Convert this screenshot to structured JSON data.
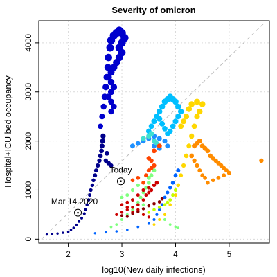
{
  "chart_data": {
    "type": "scatter",
    "title": "Severity of omicron",
    "xlabel": "log10(New daily infections)",
    "ylabel": "Hospital+ICU bed occupancy",
    "xlim": [
      1.45,
      5.75
    ],
    "ylim": [
      -80,
      4450
    ],
    "x_ticks": [
      2,
      3,
      4,
      5
    ],
    "x_tick_labels": [
      "2",
      "3",
      "4",
      "5"
    ],
    "y_ticks": [
      0,
      1000,
      2000,
      3000,
      4000
    ],
    "y_tick_labels": [
      "0",
      "1000",
      "2000",
      "3000",
      "4000"
    ],
    "grid": true,
    "legend": "none",
    "reference_line": {
      "from": [
        1.5,
        0
      ],
      "to": [
        5.65,
        4400
      ],
      "style": "dashed",
      "color": "#bbbbbb"
    },
    "annotations": [
      {
        "label": "Today",
        "x": 2.98,
        "y": 1180,
        "marker": "circled-dot"
      },
      {
        "label": "Mar 14 2020",
        "x": 2.18,
        "y": 540,
        "marker": "circled-dot"
      }
    ],
    "series": [
      {
        "color": "#00008b",
        "values": [
          [
            1.6,
            95
          ],
          [
            1.7,
            105
          ],
          [
            1.8,
            115
          ],
          [
            1.9,
            130
          ],
          [
            2.0,
            150
          ],
          [
            2.05,
            190
          ],
          [
            2.1,
            230
          ],
          [
            2.15,
            290
          ],
          [
            2.2,
            360
          ],
          [
            2.25,
            430
          ],
          [
            2.3,
            520
          ],
          [
            2.32,
            600
          ],
          [
            2.35,
            700
          ],
          [
            2.38,
            800
          ],
          [
            2.4,
            900
          ],
          [
            2.42,
            1000
          ],
          [
            2.45,
            1100
          ],
          [
            2.47,
            1200
          ],
          [
            2.5,
            1300
          ],
          [
            2.52,
            1400
          ],
          [
            2.55,
            1500
          ],
          [
            2.58,
            1600
          ],
          [
            2.6,
            1700
          ],
          [
            2.62,
            1800
          ],
          [
            2.63,
            1900
          ],
          [
            2.64,
            2000
          ],
          [
            2.65,
            2100
          ],
          [
            2.72,
            1750
          ],
          [
            2.7,
            1600
          ],
          [
            2.75,
            1550
          ],
          [
            2.8,
            1500
          ]
        ]
      },
      {
        "color": "#0000cd",
        "values": [
          [
            2.6,
            2300
          ],
          [
            2.63,
            2500
          ],
          [
            2.66,
            2700
          ],
          [
            2.68,
            2900
          ],
          [
            2.7,
            3100
          ],
          [
            2.72,
            3300
          ],
          [
            2.74,
            3500
          ],
          [
            2.75,
            3700
          ],
          [
            2.78,
            3900
          ],
          [
            2.8,
            4050
          ],
          [
            2.85,
            4150
          ],
          [
            2.9,
            4200
          ],
          [
            2.95,
            4250
          ],
          [
            3.0,
            4200
          ],
          [
            3.05,
            4100
          ],
          [
            3.0,
            4000
          ],
          [
            2.95,
            3900
          ],
          [
            3.0,
            3800
          ],
          [
            2.95,
            3700
          ],
          [
            2.9,
            3600
          ],
          [
            2.85,
            3500
          ],
          [
            2.8,
            3400
          ],
          [
            2.75,
            3300
          ],
          [
            2.8,
            3200
          ],
          [
            2.85,
            3100
          ],
          [
            2.8,
            3000
          ],
          [
            2.75,
            2900
          ],
          [
            2.8,
            2800
          ],
          [
            2.85,
            2700
          ],
          [
            2.8,
            2600
          ]
        ]
      },
      {
        "color": "#0064ff",
        "values": [
          [
            2.5,
            120
          ],
          [
            2.7,
            140
          ],
          [
            2.9,
            160
          ],
          [
            3.1,
            190
          ],
          [
            3.3,
            250
          ],
          [
            3.5,
            320
          ],
          [
            3.6,
            400
          ],
          [
            3.65,
            500
          ],
          [
            3.7,
            600
          ],
          [
            3.75,
            700
          ],
          [
            3.8,
            850
          ],
          [
            3.85,
            950
          ],
          [
            3.9,
            1050
          ],
          [
            3.95,
            1150
          ],
          [
            4.0,
            1300
          ],
          [
            4.05,
            1400
          ]
        ]
      },
      {
        "color": "#1e90ff",
        "values": [
          [
            3.2,
            1900
          ],
          [
            3.3,
            1950
          ],
          [
            3.4,
            2000
          ],
          [
            3.5,
            2050
          ],
          [
            3.6,
            2100
          ],
          [
            3.7,
            2050
          ],
          [
            3.8,
            2000
          ],
          [
            3.85,
            1900
          ],
          [
            3.7,
            1850
          ],
          [
            3.6,
            1900
          ]
        ]
      },
      {
        "color": "#00bfff",
        "values": [
          [
            3.5,
            2200
          ],
          [
            3.55,
            2300
          ],
          [
            3.6,
            2400
          ],
          [
            3.65,
            2500
          ],
          [
            3.7,
            2600
          ],
          [
            3.75,
            2700
          ],
          [
            3.8,
            2800
          ],
          [
            3.85,
            2850
          ],
          [
            3.9,
            2900
          ],
          [
            3.95,
            2850
          ],
          [
            4.0,
            2800
          ],
          [
            4.05,
            2700
          ],
          [
            4.1,
            2600
          ],
          [
            4.05,
            2500
          ],
          [
            4.0,
            2400
          ],
          [
            3.95,
            2300
          ],
          [
            3.9,
            2200
          ],
          [
            3.85,
            2150
          ],
          [
            3.8,
            2250
          ],
          [
            3.75,
            2350
          ],
          [
            3.7,
            2450
          ]
        ]
      },
      {
        "color": "#40e0d0",
        "values": [
          [
            3.4,
            2050
          ],
          [
            3.5,
            2100
          ],
          [
            3.55,
            2150
          ],
          [
            3.6,
            2000
          ],
          [
            3.65,
            1950
          ],
          [
            3.7,
            1900
          ]
        ]
      },
      {
        "color": "#7fff7f",
        "values": [
          [
            2.8,
            250
          ],
          [
            2.9,
            300
          ],
          [
            3.0,
            400
          ],
          [
            3.1,
            500
          ],
          [
            3.2,
            600
          ],
          [
            3.3,
            750
          ],
          [
            3.35,
            850
          ],
          [
            3.4,
            950
          ],
          [
            3.45,
            1050
          ],
          [
            3.5,
            1150
          ],
          [
            3.55,
            1300
          ],
          [
            3.6,
            1400
          ],
          [
            3.5,
            1250
          ],
          [
            3.3,
            1100
          ],
          [
            3.2,
            1000
          ],
          [
            3.1,
            900
          ],
          [
            3.0,
            850
          ],
          [
            3.2,
            800
          ],
          [
            3.4,
            700
          ],
          [
            3.6,
            600
          ],
          [
            3.8,
            400
          ],
          [
            3.9,
            300
          ],
          [
            4.0,
            250
          ],
          [
            4.05,
            230
          ]
        ]
      },
      {
        "color": "#c0ff00",
        "values": [
          [
            3.4,
            500
          ],
          [
            3.5,
            550
          ],
          [
            3.6,
            600
          ],
          [
            3.7,
            650
          ],
          [
            3.8,
            700
          ],
          [
            3.85,
            750
          ],
          [
            3.9,
            800
          ],
          [
            3.95,
            900
          ],
          [
            4.0,
            1000
          ],
          [
            4.05,
            1100
          ]
        ]
      },
      {
        "color": "#ffd700",
        "values": [
          [
            3.6,
            300
          ],
          [
            3.7,
            400
          ],
          [
            3.8,
            500
          ],
          [
            3.9,
            700
          ],
          [
            4.0,
            900
          ],
          [
            4.05,
            1100
          ],
          [
            4.1,
            1300
          ],
          [
            4.15,
            1500
          ],
          [
            4.2,
            1700
          ],
          [
            4.25,
            1900
          ],
          [
            4.3,
            2100
          ],
          [
            4.35,
            2300
          ],
          [
            4.4,
            2500
          ],
          [
            4.45,
            2600
          ],
          [
            4.5,
            2750
          ],
          [
            4.4,
            2800
          ],
          [
            4.3,
            2750
          ],
          [
            4.25,
            2650
          ],
          [
            4.2,
            2500
          ],
          [
            4.15,
            2400
          ],
          [
            4.1,
            2300
          ]
        ]
      },
      {
        "color": "#ff8c00",
        "values": [
          [
            4.35,
            1900
          ],
          [
            4.4,
            1950
          ],
          [
            4.45,
            2000
          ],
          [
            4.5,
            1900
          ],
          [
            4.55,
            1850
          ],
          [
            4.6,
            1800
          ],
          [
            4.65,
            1700
          ],
          [
            4.7,
            1650
          ],
          [
            4.75,
            1600
          ],
          [
            4.8,
            1550
          ],
          [
            4.85,
            1500
          ],
          [
            4.9,
            1450
          ],
          [
            4.95,
            1400
          ],
          [
            5.0,
            1350
          ],
          [
            4.9,
            1300
          ],
          [
            4.8,
            1250
          ],
          [
            4.7,
            1200
          ],
          [
            4.6,
            1150
          ],
          [
            4.55,
            1250
          ],
          [
            4.5,
            1300
          ],
          [
            4.45,
            1400
          ],
          [
            4.4,
            1500
          ],
          [
            4.35,
            1600
          ],
          [
            4.3,
            1700
          ],
          [
            5.6,
            1600
          ]
        ]
      },
      {
        "color": "#ff4500",
        "values": [
          [
            3.2,
            1200
          ],
          [
            3.3,
            1250
          ],
          [
            3.4,
            1150
          ],
          [
            3.45,
            1300
          ],
          [
            3.5,
            1400
          ],
          [
            3.55,
            1450
          ],
          [
            3.6,
            1500
          ],
          [
            3.55,
            1600
          ],
          [
            3.5,
            1650
          ],
          [
            3.6,
            1800
          ],
          [
            3.7,
            1900
          ]
        ]
      },
      {
        "color": "#cc0000",
        "values": [
          [
            2.9,
            500
          ],
          [
            3.0,
            550
          ],
          [
            3.1,
            600
          ],
          [
            3.2,
            650
          ],
          [
            3.3,
            700
          ],
          [
            3.4,
            800
          ],
          [
            3.45,
            900
          ],
          [
            3.5,
            950
          ],
          [
            3.55,
            1000
          ],
          [
            3.6,
            1100
          ],
          [
            3.65,
            1150
          ],
          [
            3.5,
            1050
          ],
          [
            3.4,
            1000
          ],
          [
            3.3,
            900
          ],
          [
            3.2,
            800
          ],
          [
            3.1,
            750
          ],
          [
            3.0,
            700
          ],
          [
            3.1,
            650
          ],
          [
            3.2,
            550
          ],
          [
            3.3,
            600
          ],
          [
            3.4,
            500
          ],
          [
            3.5,
            450
          ]
        ]
      },
      {
        "color": "#8b0000",
        "values": [
          [
            3.0,
            480
          ],
          [
            3.1,
            460
          ],
          [
            3.2,
            520
          ],
          [
            3.3,
            560
          ],
          [
            3.4,
            620
          ],
          [
            3.5,
            680
          ],
          [
            3.6,
            720
          ],
          [
            3.7,
            760
          ],
          [
            3.75,
            820
          ]
        ]
      }
    ]
  }
}
